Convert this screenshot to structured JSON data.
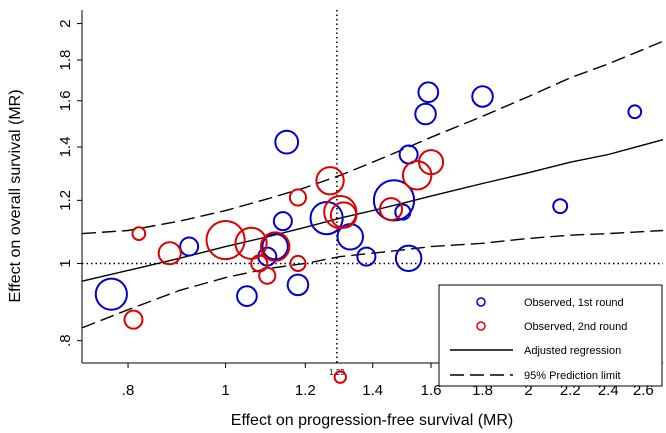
{
  "chart_data": {
    "type": "scatter",
    "title": "",
    "xlabel": "Effect on progression-free survival (MR)",
    "ylabel": "Effect on overall survival (MR)",
    "x_scale": "log",
    "y_scale": "log",
    "xlim": [
      0.72,
      2.72
    ],
    "ylim": [
      0.75,
      2.08
    ],
    "x_ticks": [
      {
        "value": 0.8,
        "label": ".8"
      },
      {
        "value": 1.0,
        "label": "1"
      },
      {
        "value": 1.2,
        "label": "1.2"
      },
      {
        "value": 1.4,
        "label": "1.4"
      },
      {
        "value": 1.6,
        "label": "1.6"
      },
      {
        "value": 1.8,
        "label": "1.8"
      },
      {
        "value": 2.0,
        "label": "2"
      },
      {
        "value": 2.2,
        "label": "2.2"
      },
      {
        "value": 2.4,
        "label": "2.4"
      },
      {
        "value": 2.6,
        "label": "2.6"
      }
    ],
    "y_ticks": [
      {
        "value": 0.8,
        "label": ".8"
      },
      {
        "value": 1.0,
        "label": "1"
      },
      {
        "value": 1.2,
        "label": "1.2"
      },
      {
        "value": 1.4,
        "label": "1.4"
      },
      {
        "value": 1.6,
        "label": "1.6"
      },
      {
        "value": 1.8,
        "label": "1.8"
      },
      {
        "value": 2.0,
        "label": "2"
      }
    ],
    "reference_lines": {
      "vertical_x": 1.29,
      "vertical_label": "1.29",
      "horizontal_y": 1.0
    },
    "legend": {
      "placement": "bottom-right",
      "entries": [
        {
          "label": "Observed, 1st round",
          "kind": "marker",
          "color": "#0000cc"
        },
        {
          "label": "Observed, 2nd round",
          "kind": "marker",
          "color": "#dd0000"
        },
        {
          "label": "Adjusted regression",
          "kind": "solid-line",
          "color": "#000000"
        },
        {
          "label": "95% Prediction limit",
          "kind": "dashed-line",
          "color": "#000000"
        }
      ]
    },
    "colors": {
      "round1": "#0000cc",
      "round2": "#dd0000",
      "lines": "#000000"
    },
    "series": [
      {
        "round": 1,
        "color": "#0000cc",
        "points": [
          {
            "x": 0.77,
            "y": 0.915,
            "w": 3
          },
          {
            "x": 0.92,
            "y": 1.05,
            "w": 1
          },
          {
            "x": 1.05,
            "y": 0.91,
            "w": 1.2
          },
          {
            "x": 1.1,
            "y": 1.02,
            "w": 1
          },
          {
            "x": 1.12,
            "y": 1.05,
            "w": 2
          },
          {
            "x": 1.14,
            "y": 1.13,
            "w": 1
          },
          {
            "x": 1.15,
            "y": 1.42,
            "w": 1.6
          },
          {
            "x": 1.18,
            "y": 0.94,
            "w": 1.3
          },
          {
            "x": 1.26,
            "y": 1.14,
            "w": 3.2
          },
          {
            "x": 1.33,
            "y": 1.08,
            "w": 2
          },
          {
            "x": 1.38,
            "y": 1.02,
            "w": 1
          },
          {
            "x": 1.47,
            "y": 1.2,
            "w": 5
          },
          {
            "x": 1.5,
            "y": 1.16,
            "w": 0.7
          },
          {
            "x": 1.52,
            "y": 1.37,
            "w": 1
          },
          {
            "x": 1.52,
            "y": 1.015,
            "w": 2
          },
          {
            "x": 1.58,
            "y": 1.54,
            "w": 1.3
          },
          {
            "x": 1.59,
            "y": 1.64,
            "w": 1.2
          },
          {
            "x": 1.8,
            "y": 1.62,
            "w": 1.3
          },
          {
            "x": 2.15,
            "y": 1.18,
            "w": 0.6
          },
          {
            "x": 2.55,
            "y": 1.55,
            "w": 0.5
          }
        ]
      },
      {
        "round": 2,
        "color": "#dd0000",
        "points": [
          {
            "x": 0.81,
            "y": 0.85,
            "w": 1
          },
          {
            "x": 0.82,
            "y": 1.09,
            "w": 0.5
          },
          {
            "x": 0.88,
            "y": 1.03,
            "w": 1.5
          },
          {
            "x": 1.0,
            "y": 1.07,
            "w": 4.5
          },
          {
            "x": 1.06,
            "y": 1.06,
            "w": 3
          },
          {
            "x": 1.08,
            "y": 1.0,
            "w": 0.8
          },
          {
            "x": 1.1,
            "y": 0.965,
            "w": 0.8
          },
          {
            "x": 1.12,
            "y": 1.05,
            "w": 2.5
          },
          {
            "x": 1.18,
            "y": 1.21,
            "w": 0.8
          },
          {
            "x": 1.18,
            "y": 1.0,
            "w": 0.7
          },
          {
            "x": 1.27,
            "y": 1.27,
            "w": 2.3
          },
          {
            "x": 1.3,
            "y": 1.16,
            "w": 3.2
          },
          {
            "x": 1.31,
            "y": 1.15,
            "w": 2
          },
          {
            "x": 1.3,
            "y": 0.72,
            "w": 0.4
          },
          {
            "x": 1.46,
            "y": 1.17,
            "w": 1.5
          },
          {
            "x": 1.55,
            "y": 1.29,
            "w": 2.5
          },
          {
            "x": 1.6,
            "y": 1.34,
            "w": 1.8
          }
        ]
      }
    ],
    "regression": {
      "x": [
        0.72,
        0.8,
        0.9,
        1.0,
        1.1,
        1.2,
        1.3,
        1.4,
        1.5,
        1.6,
        1.8,
        2.0,
        2.2,
        2.4,
        2.72
      ],
      "fit": [
        0.95,
        0.98,
        1.015,
        1.05,
        1.08,
        1.11,
        1.14,
        1.165,
        1.19,
        1.215,
        1.26,
        1.3,
        1.34,
        1.37,
        1.43
      ],
      "upper": [
        1.09,
        1.1,
        1.13,
        1.165,
        1.205,
        1.245,
        1.29,
        1.34,
        1.39,
        1.44,
        1.53,
        1.62,
        1.71,
        1.78,
        1.9
      ],
      "lower": [
        0.83,
        0.875,
        0.925,
        0.96,
        0.985,
        1.0,
        1.02,
        1.03,
        1.04,
        1.05,
        1.06,
        1.075,
        1.085,
        1.09,
        1.1
      ]
    }
  }
}
